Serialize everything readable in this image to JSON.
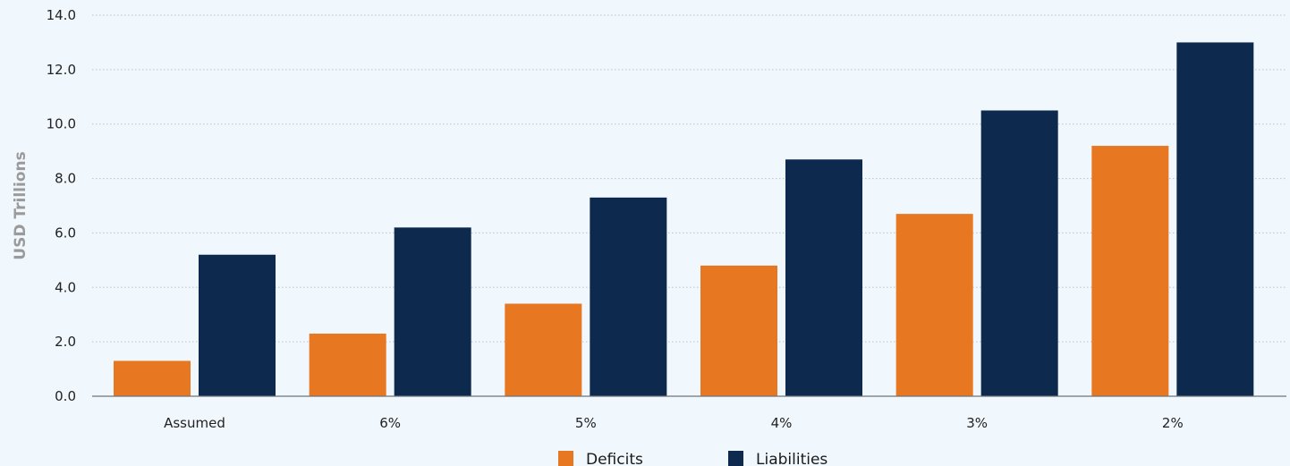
{
  "chart_data": {
    "type": "bar",
    "categories": [
      "Assumed",
      "6%",
      "5%",
      "4%",
      "3%",
      "2%"
    ],
    "series": [
      {
        "name": "Deficits",
        "color": "#e87722",
        "values": [
          1.3,
          2.3,
          3.4,
          4.8,
          6.7,
          9.2
        ]
      },
      {
        "name": "Liabilities",
        "color": "#0d2a4e",
        "values": [
          5.2,
          6.2,
          7.3,
          8.7,
          10.5,
          13.0
        ]
      }
    ],
    "ylabel": "USD Trillions",
    "ylim": [
      0,
      14
    ],
    "yticks": [
      "0.0",
      "2.0",
      "4.0",
      "6.0",
      "8.0",
      "10.0",
      "12.0",
      "14.0"
    ],
    "grid": true,
    "legend_position": "bottom-center"
  }
}
